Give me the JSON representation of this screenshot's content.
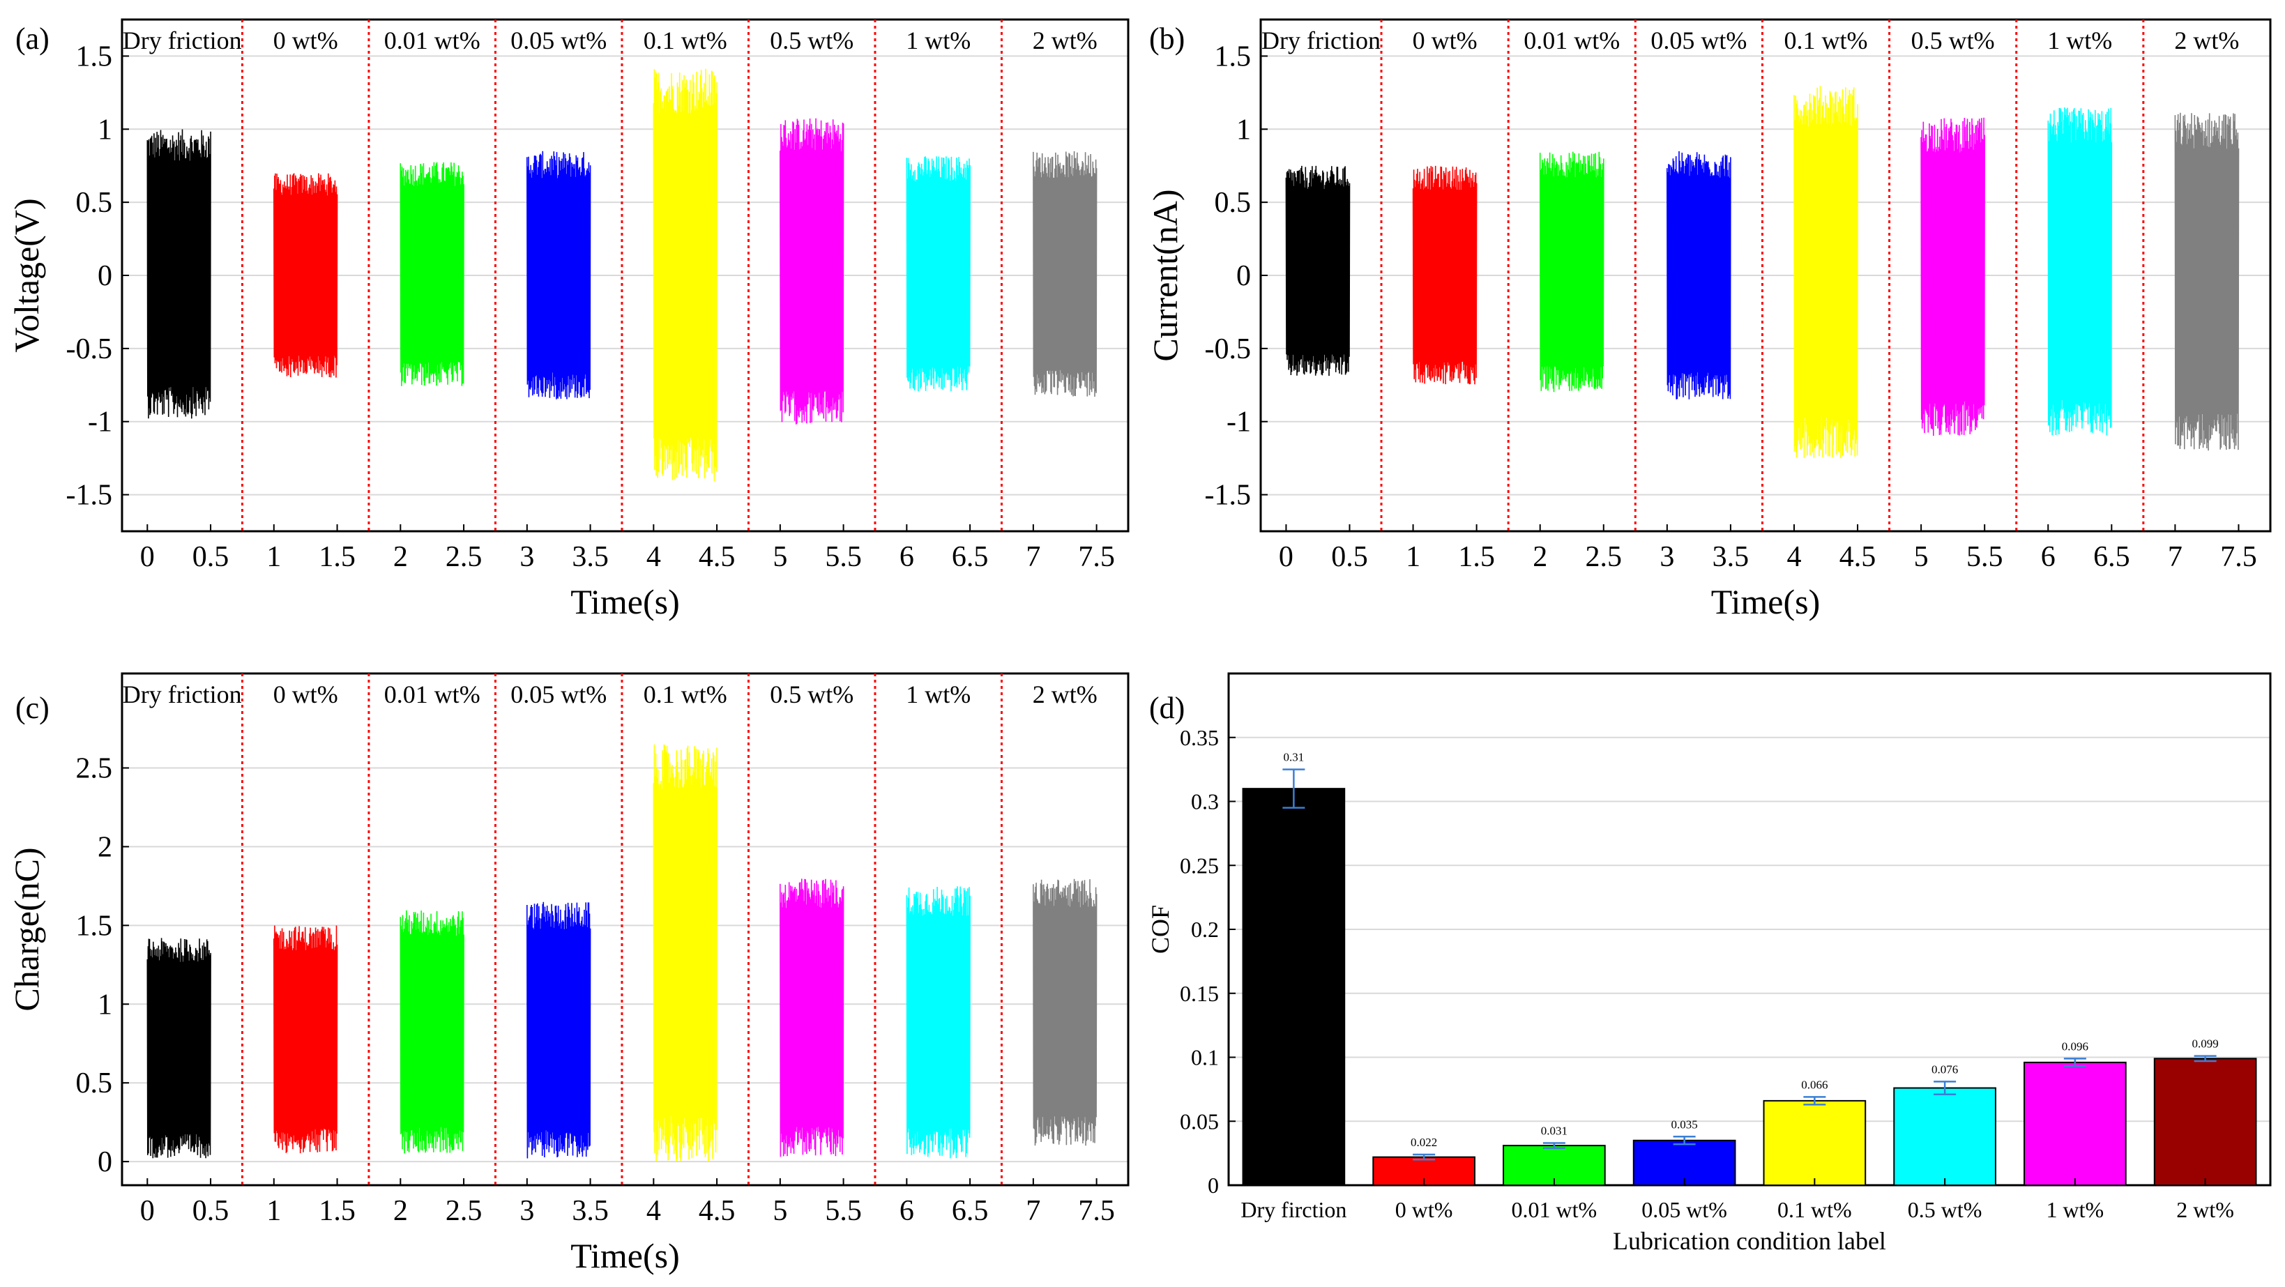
{
  "condition_labels": [
    "Dry friction",
    "0 wt%",
    "0.01 wt%",
    "0.05 wt%",
    "0.1 wt%",
    "0.5 wt%",
    "1 wt%",
    "2 wt%"
  ],
  "series_colors": [
    "#000000",
    "#ff0000",
    "#00ff00",
    "#0000ff",
    "#ffff00",
    "#ff00ff",
    "#00ffff",
    "#808080"
  ],
  "bar_colors": [
    "#000000",
    "#ff0000",
    "#00ff00",
    "#0000ff",
    "#ffff00",
    "#00ffff",
    "#ff00ff",
    "#990000"
  ],
  "divider_color": "#ff0000",
  "errorbar_color": "#3a7fd5",
  "chart_data": [
    {
      "panel": "(a)",
      "type": "line",
      "xlabel": "Time(s)",
      "ylabel": "Voltage(V)",
      "xlim": [
        -0.2,
        7.75
      ],
      "ylim": [
        -1.75,
        1.75
      ],
      "xticks": [
        0,
        0.5,
        1,
        1.5,
        2,
        2.5,
        3,
        3.5,
        4,
        4.5,
        5,
        5.5,
        6,
        6.5,
        7,
        7.5
      ],
      "yticks": [
        -1.5,
        -1,
        -0.5,
        0,
        0.5,
        1,
        1.5
      ],
      "grid": "horizontal",
      "dividers": [
        0.75,
        1.75,
        2.75,
        3.75,
        4.75,
        5.75,
        6.75
      ],
      "region_labels": [
        "Dry friction",
        "0 wt%",
        "0.01 wt%",
        "0.05 wt%",
        "0.1 wt%",
        "0.5 wt%",
        "1 wt%",
        "2 wt%"
      ],
      "series": [
        {
          "x_range": [
            0.0,
            0.5
          ],
          "min": -0.98,
          "max": 1.0
        },
        {
          "x_range": [
            1.0,
            1.5
          ],
          "min": -0.7,
          "max": 0.7
        },
        {
          "x_range": [
            2.0,
            2.5
          ],
          "min": -0.76,
          "max": 0.78
        },
        {
          "x_range": [
            3.0,
            3.5
          ],
          "min": -0.85,
          "max": 0.85
        },
        {
          "x_range": [
            4.0,
            4.5
          ],
          "min": -1.42,
          "max": 1.42
        },
        {
          "x_range": [
            5.0,
            5.5
          ],
          "min": -1.02,
          "max": 1.08
        },
        {
          "x_range": [
            6.0,
            6.5
          ],
          "min": -0.8,
          "max": 0.82
        },
        {
          "x_range": [
            7.0,
            7.5
          ],
          "min": -0.83,
          "max": 0.85
        }
      ]
    },
    {
      "panel": "(b)",
      "type": "line",
      "xlabel": "Time(s)",
      "ylabel": "Current(nA)",
      "xlim": [
        -0.2,
        7.75
      ],
      "ylim": [
        -1.75,
        1.75
      ],
      "xticks": [
        0,
        0.5,
        1,
        1.5,
        2,
        2.5,
        3,
        3.5,
        4,
        4.5,
        5,
        5.5,
        6,
        6.5,
        7,
        7.5
      ],
      "yticks": [
        -1.5,
        -1,
        -0.5,
        0,
        0.5,
        1,
        1.5
      ],
      "grid": "horizontal",
      "dividers": [
        0.75,
        1.75,
        2.75,
        3.75,
        4.75,
        5.75,
        6.75
      ],
      "region_labels": [
        "Dry friction",
        "0 wt%",
        "0.01 wt%",
        "0.05 wt%",
        "0.1 wt%",
        "0.5 wt%",
        "1 wt%",
        "2 wt%"
      ],
      "series": [
        {
          "x_range": [
            0.0,
            0.5
          ],
          "min": -0.7,
          "max": 0.75
        },
        {
          "x_range": [
            1.0,
            1.5
          ],
          "min": -0.75,
          "max": 0.75
        },
        {
          "x_range": [
            2.0,
            2.5
          ],
          "min": -0.8,
          "max": 0.85
        },
        {
          "x_range": [
            3.0,
            3.5
          ],
          "min": -0.85,
          "max": 0.85
        },
        {
          "x_range": [
            4.0,
            4.5
          ],
          "min": -1.25,
          "max": 1.3
        },
        {
          "x_range": [
            5.0,
            5.5
          ],
          "min": -1.1,
          "max": 1.08
        },
        {
          "x_range": [
            6.0,
            6.5
          ],
          "min": -1.1,
          "max": 1.15
        },
        {
          "x_range": [
            7.0,
            7.5
          ],
          "min": -1.2,
          "max": 1.12
        }
      ]
    },
    {
      "panel": "(c)",
      "type": "line",
      "xlabel": "Time(s)",
      "ylabel": "Charge(nC)",
      "xlim": [
        -0.2,
        7.75
      ],
      "ylim": [
        -0.15,
        3.1
      ],
      "xticks": [
        0,
        0.5,
        1,
        1.5,
        2,
        2.5,
        3,
        3.5,
        4,
        4.5,
        5,
        5.5,
        6,
        6.5,
        7,
        7.5
      ],
      "yticks": [
        0,
        0.5,
        1,
        1.5,
        2,
        2.5
      ],
      "grid": "horizontal",
      "dividers": [
        0.75,
        1.75,
        2.75,
        3.75,
        4.75,
        5.75,
        6.75
      ],
      "region_labels": [
        "Dry friction",
        "0 wt%",
        "0.01 wt%",
        "0.05 wt%",
        "0.1 wt%",
        "0.5 wt%",
        "1 wt%",
        "2 wt%"
      ],
      "series": [
        {
          "x_range": [
            0.0,
            0.5
          ],
          "min": 0.02,
          "max": 1.42
        },
        {
          "x_range": [
            1.0,
            1.5
          ],
          "min": 0.05,
          "max": 1.5
        },
        {
          "x_range": [
            2.0,
            2.5
          ],
          "min": 0.05,
          "max": 1.6
        },
        {
          "x_range": [
            3.0,
            3.5
          ],
          "min": 0.02,
          "max": 1.65
        },
        {
          "x_range": [
            4.0,
            4.5
          ],
          "min": 0.0,
          "max": 2.65
        },
        {
          "x_range": [
            5.0,
            5.5
          ],
          "min": 0.03,
          "max": 1.8
        },
        {
          "x_range": [
            6.0,
            6.5
          ],
          "min": 0.02,
          "max": 1.75
        },
        {
          "x_range": [
            7.0,
            7.5
          ],
          "min": 0.1,
          "max": 1.8
        }
      ]
    },
    {
      "panel": "(d)",
      "type": "bar",
      "xlabel": "Lubrication condition label",
      "ylabel": "COF",
      "ylim": [
        0,
        0.4
      ],
      "yticks": [
        0,
        0.05,
        0.1,
        0.15,
        0.2,
        0.25,
        0.3,
        0.35
      ],
      "grid": "horizontal",
      "categories": [
        "Dry firction",
        "0 wt%",
        "0.01 wt%",
        "0.05 wt%",
        "0.1 wt%",
        "0.5 wt%",
        "1 wt%",
        "2 wt%"
      ],
      "values": [
        0.31,
        0.022,
        0.031,
        0.035,
        0.066,
        0.076,
        0.096,
        0.099
      ],
      "value_labels": [
        "0.31",
        "0.022",
        "0.031",
        "0.035",
        "0.066",
        "0.076",
        "0.096",
        "0.099"
      ],
      "errors": [
        0.015,
        0.002,
        0.002,
        0.003,
        0.003,
        0.005,
        0.003,
        0.002
      ]
    }
  ]
}
